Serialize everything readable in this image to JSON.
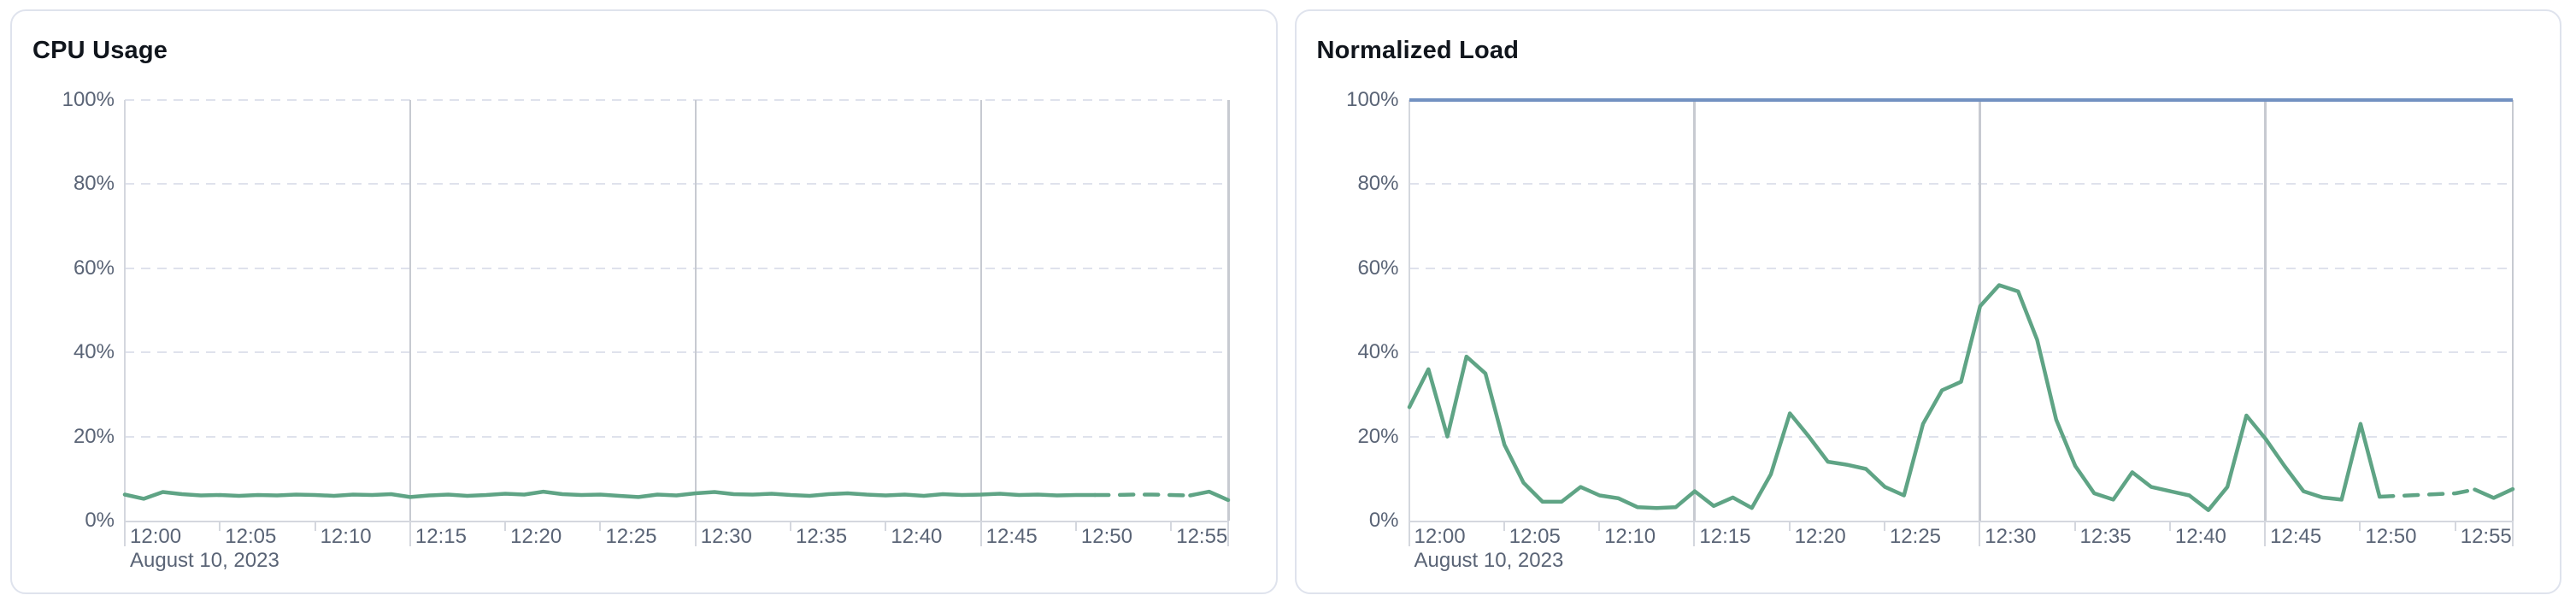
{
  "colors": {
    "series_green": "#5fa485",
    "threshold_blue": "#7291c1",
    "grid_dashed": "#dfe2ec",
    "grid_vertical": "#c7cad1",
    "axis_line": "#d4d7de",
    "tick_label": "#5a6476",
    "title_text": "#10151c",
    "card_border": "#dfe3ed",
    "card_background": "#ffffff"
  },
  "chart_data": [
    {
      "type": "line",
      "title": "CPU Usage",
      "xlabel": "",
      "ylabel": "",
      "ylim": [
        0,
        100
      ],
      "y_tick_labels": [
        "0%",
        "20%",
        "40%",
        "60%",
        "80%",
        "100%"
      ],
      "y_tick_values": [
        0,
        20,
        40,
        60,
        80,
        100
      ],
      "x_tick_labels": [
        "12:00",
        "12:05",
        "12:10",
        "12:15",
        "12:20",
        "12:25",
        "12:30",
        "12:35",
        "12:40",
        "12:45",
        "12:50",
        "12:55"
      ],
      "x_tick_minutes": [
        0,
        5,
        10,
        15,
        20,
        25,
        30,
        35,
        40,
        45,
        50,
        55
      ],
      "major_gridline_minutes": [
        15,
        30,
        45,
        58
      ],
      "x_range_minutes": [
        0,
        58
      ],
      "interval_minutes": 1,
      "date_label": "August 10, 2023",
      "grid": "horizontal-dashed",
      "legend": "none",
      "threshold_line": null,
      "dashed_segment": {
        "start_minute": 51,
        "end_minute": 56
      },
      "values": [
        6.2,
        5.2,
        6.8,
        6.3,
        6.0,
        6.1,
        5.9,
        6.1,
        6.0,
        6.2,
        6.1,
        5.9,
        6.2,
        6.1,
        6.3,
        5.6,
        6.0,
        6.2,
        5.9,
        6.1,
        6.4,
        6.2,
        6.9,
        6.3,
        6.1,
        6.2,
        5.9,
        5.6,
        6.2,
        6.0,
        6.5,
        6.8,
        6.3,
        6.2,
        6.4,
        6.1,
        5.9,
        6.3,
        6.5,
        6.2,
        6.0,
        6.2,
        5.9,
        6.3,
        6.1,
        6.2,
        6.4,
        6.1,
        6.2,
        6.0,
        6.1,
        6.1,
        6.1,
        6.2,
        6.2,
        6.1,
        6.0,
        6.9,
        4.9
      ]
    },
    {
      "type": "line",
      "title": "Normalized Load",
      "xlabel": "",
      "ylabel": "",
      "ylim": [
        0,
        100
      ],
      "y_tick_labels": [
        "0%",
        "20%",
        "40%",
        "60%",
        "80%",
        "100%"
      ],
      "y_tick_values": [
        0,
        20,
        40,
        60,
        80,
        100
      ],
      "x_tick_labels": [
        "12:00",
        "12:05",
        "12:10",
        "12:15",
        "12:20",
        "12:25",
        "12:30",
        "12:35",
        "12:40",
        "12:45",
        "12:50",
        "12:55"
      ],
      "x_tick_minutes": [
        0,
        5,
        10,
        15,
        20,
        25,
        30,
        35,
        40,
        45,
        50,
        55
      ],
      "major_gridline_minutes": [
        15,
        30,
        45,
        58
      ],
      "x_range_minutes": [
        0,
        58
      ],
      "interval_minutes": 1,
      "date_label": "August 10, 2023",
      "grid": "horizontal-dashed",
      "legend": "none",
      "threshold_line": 100,
      "dashed_segment": {
        "start_minute": 51,
        "end_minute": 56
      },
      "values": [
        27,
        36,
        20,
        39,
        35,
        18,
        9,
        4.5,
        4.5,
        8,
        6,
        5.3,
        3.2,
        3,
        3.2,
        7,
        3.5,
        5.5,
        3,
        11,
        25.5,
        20,
        14,
        13.3,
        12.3,
        8,
        6,
        23,
        31,
        33,
        51,
        56,
        54.5,
        43,
        24,
        13,
        6.5,
        5,
        11.5,
        8,
        7,
        6,
        2.5,
        8,
        25,
        19.5,
        13,
        7,
        5.5,
        5,
        23,
        5.7,
        5.9,
        6.1,
        6.3,
        6.5,
        7.4,
        5.4,
        7.5
      ]
    }
  ]
}
